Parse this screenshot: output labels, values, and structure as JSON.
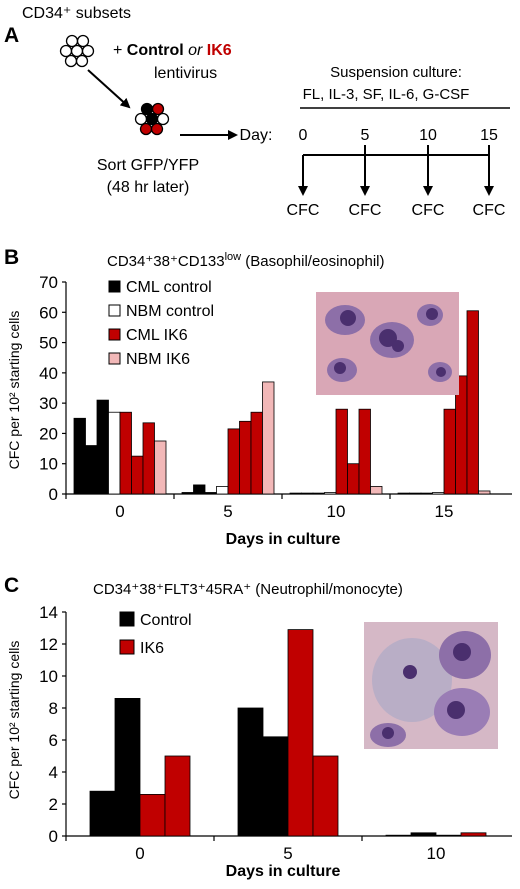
{
  "panelA": {
    "label": "A",
    "subsets": "CD34⁺ subsets",
    "plus": "+ ",
    "control": "Control",
    "or": " or ",
    "ik6": "IK6",
    "lentivirus": "lentivirus",
    "sort_line1": "Sort GFP/YFP",
    "sort_line2": "(48 hr later)",
    "culture_line1": "Suspension culture:",
    "culture_line2": "FL, IL-3, SF, IL-6, G-CSF",
    "day_label": "Day:",
    "days": [
      "0",
      "5",
      "10",
      "15"
    ],
    "cfc": [
      "CFC",
      "CFC",
      "CFC",
      "CFC"
    ]
  },
  "chart_data": [
    {
      "type": "bar",
      "panel": "B",
      "title_main": "CD34⁺38⁺CD133",
      "title_sup": "low",
      "title_rest": " (Basophil/eosinophil)",
      "ylabel": "CFC per 10² starting cells",
      "xlabel": "Days in culture",
      "ylim": [
        0,
        70
      ],
      "yticks": [
        0,
        10,
        20,
        30,
        40,
        50,
        60,
        70
      ],
      "categories": [
        "0",
        "5",
        "10",
        "15"
      ],
      "legend_position": "top-left",
      "series": [
        {
          "name": "CML control",
          "color": "#000000",
          "values": [
            [
              25,
              16,
              31
            ],
            [
              0.5,
              3,
              0.5
            ],
            [
              0.3,
              0.3,
              0.3
            ],
            [
              0.3,
              0.3,
              0.3
            ]
          ]
        },
        {
          "name": "NBM control",
          "color": "#ffffff",
          "values": [
            [
              27
            ],
            [
              2.5
            ],
            [
              0.5
            ],
            [
              0.5
            ]
          ]
        },
        {
          "name": "CML IK6",
          "color": "#c00000",
          "values": [
            [
              27,
              12.5,
              23.5
            ],
            [
              21.5,
              24,
              27
            ],
            [
              28,
              10,
              28
            ],
            [
              28,
              39,
              60.5
            ]
          ]
        },
        {
          "name": "NBM IK6",
          "color": "#f2b8b8",
          "values": [
            [
              17.5
            ],
            [
              37
            ],
            [
              2.5
            ],
            [
              1
            ]
          ]
        }
      ]
    },
    {
      "type": "bar",
      "panel": "C",
      "title_main": "CD34⁺38⁺FLT3⁺45RA⁺",
      "title_rest": " (Neutrophil/monocyte)",
      "ylabel": "CFC per 10² starting cells",
      "xlabel": "Days in culture",
      "ylim": [
        0,
        14
      ],
      "yticks": [
        0,
        2,
        4,
        6,
        8,
        10,
        12,
        14
      ],
      "categories": [
        "0",
        "5",
        "10"
      ],
      "legend_position": "top-left",
      "series": [
        {
          "name": "Control",
          "color": "#000000",
          "values": [
            [
              2.8,
              8.6
            ],
            [
              8.0,
              6.2
            ],
            [
              0.05,
              0.2
            ]
          ]
        },
        {
          "name": "IK6",
          "color": "#c00000",
          "values": [
            [
              2.6,
              5.0
            ],
            [
              12.9,
              5.0
            ],
            [
              0.05,
              0.2
            ]
          ]
        }
      ]
    }
  ],
  "colors": {
    "black": "#000000",
    "red": "#c00000",
    "pink": "#f2b8b8",
    "micro_bg": "#d9a7b6",
    "micro_cell": "#8d6fa8",
    "micro_nucleus": "#4a2f6e"
  }
}
